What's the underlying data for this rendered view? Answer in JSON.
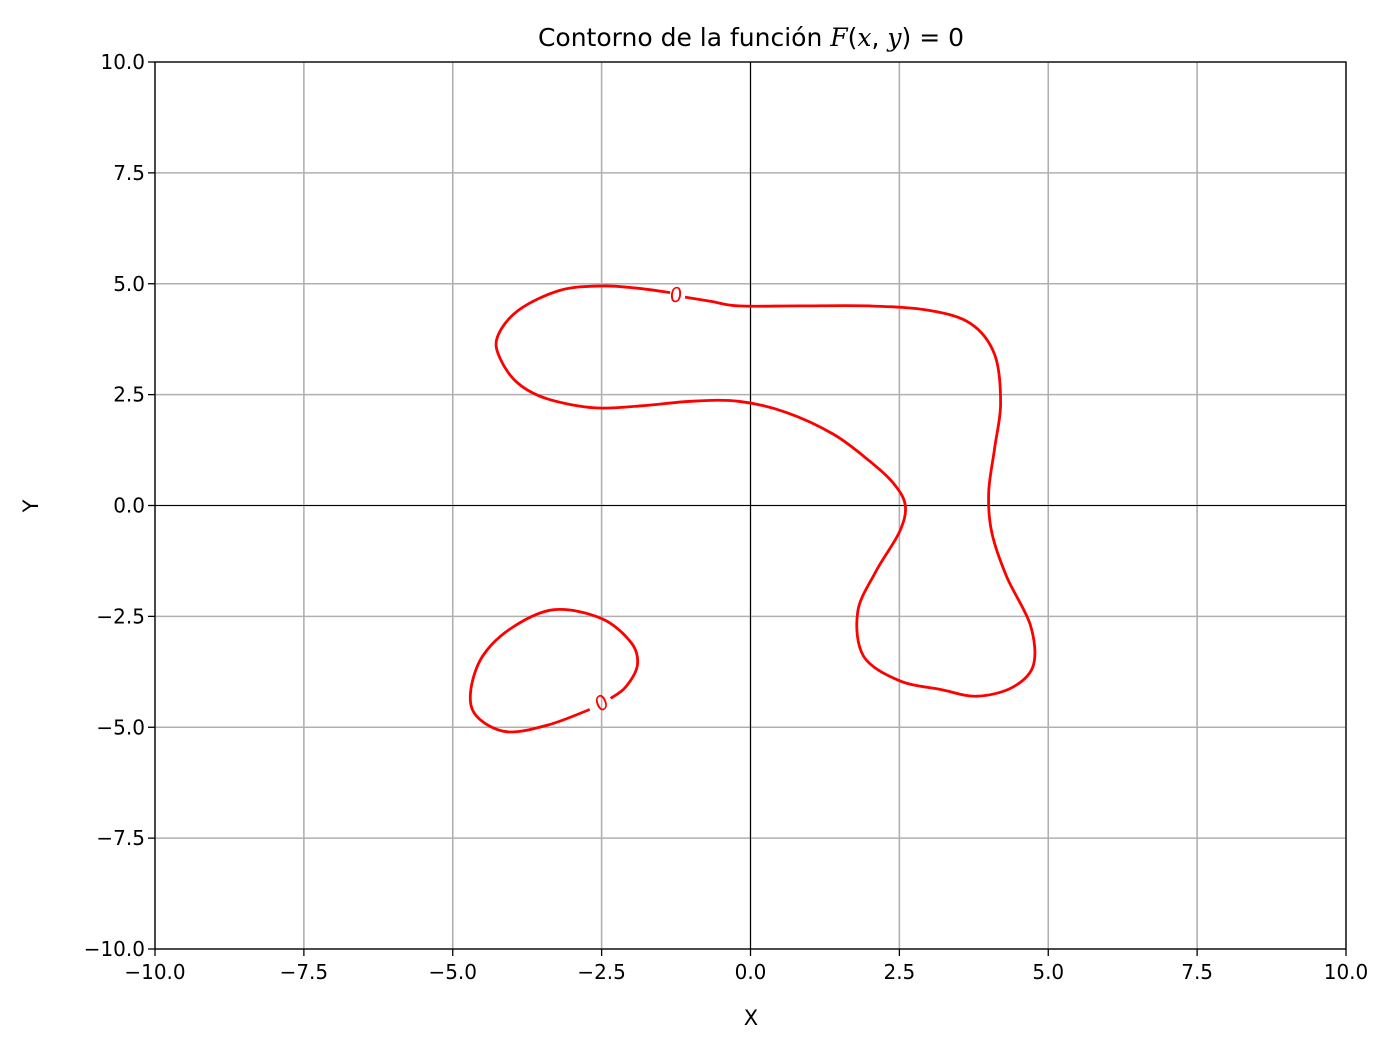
{
  "chart_data": {
    "type": "line",
    "title": "Contorno de la función F(x, y) = 0",
    "title_parts": {
      "prefix": "Contorno de la función ",
      "F": "F",
      "open": "(",
      "x": "x",
      "comma": ", ",
      "y": "y",
      "close": ")",
      "rhs": " = 0"
    },
    "xlabel": "X",
    "ylabel": "Y",
    "xlim": [
      -10,
      10
    ],
    "ylim": [
      -10,
      10
    ],
    "grid": true,
    "xticks": [
      -10,
      -7.5,
      -5,
      -2.5,
      0,
      2.5,
      5,
      7.5,
      10
    ],
    "yticks": [
      -10,
      -7.5,
      -5,
      -2.5,
      0,
      2.5,
      5,
      7.5,
      10
    ],
    "xtick_labels": [
      "−10.0",
      "−7.5",
      "−5.0",
      "−2.5",
      "0.0",
      "2.5",
      "5.0",
      "7.5",
      "10.0"
    ],
    "ytick_labels": [
      "−10.0",
      "−7.5",
      "−5.0",
      "−2.5",
      "0.0",
      "2.5",
      "5.0",
      "7.5",
      "10.0"
    ],
    "series_color": "#ff0000",
    "contour_labels": [
      {
        "text": "0",
        "x": -1.25,
        "y": 4.75,
        "angle": -8
      },
      {
        "text": "0",
        "x": -2.5,
        "y": -4.45,
        "angle": -35
      }
    ],
    "series": [
      {
        "x": [
          -1.35,
          -1.9,
          -2.5,
          -3.2,
          -3.9,
          -4.25,
          -4.2,
          -3.9,
          -3.4,
          -2.6,
          -1.8,
          -1.0,
          -0.2,
          0.6,
          1.4,
          2.0,
          2.4,
          2.6,
          2.5,
          2.1,
          1.8,
          1.9,
          2.5,
          3.2,
          3.8,
          4.4,
          4.75,
          4.7,
          4.3,
          4.05,
          4.0,
          4.1,
          4.2,
          4.1,
          3.7,
          3.0,
          2.0,
          0.8,
          -0.2,
          -0.65,
          -1.1
        ],
        "y": [
          4.8,
          4.9,
          4.95,
          4.85,
          4.4,
          3.8,
          3.3,
          2.75,
          2.4,
          2.2,
          2.25,
          2.35,
          2.35,
          2.1,
          1.6,
          1.0,
          0.5,
          0.0,
          -0.6,
          -1.5,
          -2.4,
          -3.4,
          -3.95,
          -4.15,
          -4.3,
          -4.1,
          -3.6,
          -2.7,
          -1.6,
          -0.6,
          0.3,
          1.3,
          2.3,
          3.4,
          4.1,
          4.4,
          4.5,
          4.5,
          4.5,
          4.6,
          4.7
        ]
      },
      {
        "x": [
          -2.35,
          -2.1,
          -1.9,
          -2.0,
          -2.5,
          -3.3,
          -4.0,
          -4.5,
          -4.7,
          -4.6,
          -4.1,
          -3.4,
          -2.7
        ],
        "y": [
          -4.35,
          -4.1,
          -3.6,
          -3.1,
          -2.55,
          -2.35,
          -2.75,
          -3.4,
          -4.2,
          -4.75,
          -5.1,
          -4.95,
          -4.6
        ]
      }
    ]
  }
}
